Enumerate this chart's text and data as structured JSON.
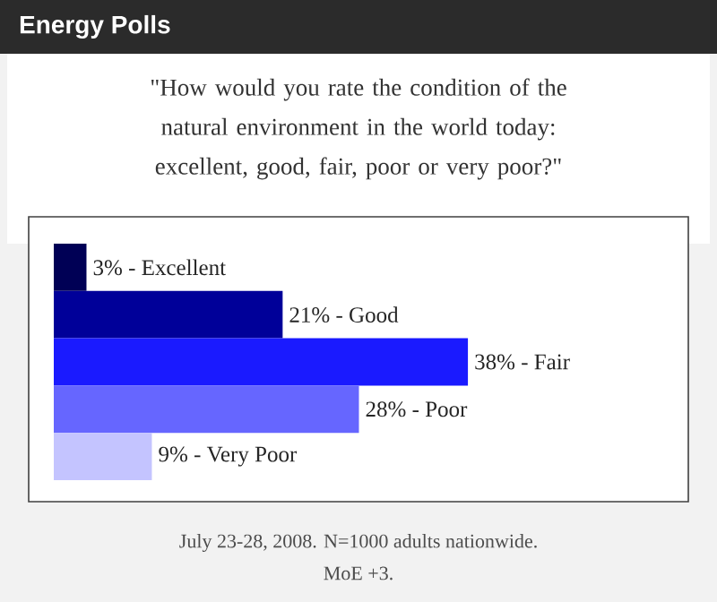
{
  "chart_data": {
    "type": "bar",
    "orientation": "horizontal",
    "title": "Energy Polls",
    "subtitle": "\"How would you rate the condition of the natural environment in the world today: excellent, good, fair, poor or very poor?\"",
    "categories": [
      null,
      null,
      null,
      null,
      null
    ],
    "values": [
      3,
      21,
      38,
      28,
      9
    ],
    "colors": [
      "#000055",
      "#000099",
      "#1a1aff",
      "#6666ff",
      "#c4c4ff"
    ],
    "value_labels": [
      "3% - Excellent",
      "21% - Good",
      "38% - Fair",
      "28% - Poor",
      "9% - Very Poor"
    ],
    "annotations": [
      "July 23-28, 2008. N=1000 adults nationwide.",
      "MoE +3."
    ]
  }
}
